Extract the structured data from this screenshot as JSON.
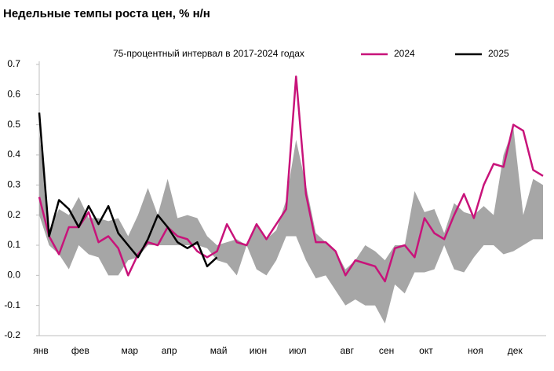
{
  "chart_data": {
    "type": "line",
    "title": "Недельные темпы роста цен, % н/н",
    "categories": [
      "янв",
      null,
      null,
      null,
      "фев",
      null,
      null,
      null,
      null,
      "мар",
      null,
      null,
      null,
      "апр",
      null,
      null,
      null,
      null,
      "май",
      null,
      null,
      null,
      "июн",
      null,
      null,
      null,
      "июл",
      null,
      null,
      null,
      null,
      "авг",
      null,
      null,
      null,
      "сен",
      null,
      null,
      null,
      "окт",
      null,
      null,
      null,
      null,
      "ноя",
      null,
      null,
      null,
      "дек",
      null,
      null,
      null
    ],
    "series": [
      {
        "name": "75-процентный интервал в 2017-2024 годах",
        "color": "#a6a6a6",
        "upper": [
          0.48,
          0.15,
          0.22,
          0.2,
          0.26,
          0.19,
          0.19,
          0.18,
          0.19,
          0.13,
          0.2,
          0.29,
          0.2,
          0.32,
          0.19,
          0.2,
          0.19,
          0.13,
          0.1,
          0.11,
          0.12,
          0.1,
          0.17,
          0.12,
          0.15,
          0.25,
          0.45,
          0.3,
          0.14,
          0.11,
          0.08,
          0.02,
          0.05,
          0.1,
          0.08,
          0.05,
          0.1,
          0.1,
          0.28,
          0.21,
          0.22,
          0.14,
          0.24,
          0.21,
          0.2,
          0.23,
          0.2,
          0.4,
          0.49,
          0.2,
          0.32,
          0.3
        ],
        "lower": [
          0.2,
          0.1,
          0.07,
          0.02,
          0.1,
          0.07,
          0.06,
          0.0,
          0.0,
          0.05,
          0.06,
          0.1,
          0.1,
          0.1,
          0.1,
          0.1,
          0.1,
          0.09,
          0.05,
          0.04,
          0.0,
          0.1,
          0.02,
          0.0,
          0.05,
          0.13,
          0.13,
          0.05,
          -0.01,
          0.0,
          -0.05,
          -0.1,
          -0.08,
          -0.1,
          -0.1,
          -0.16,
          -0.03,
          -0.06,
          0.01,
          0.01,
          0.02,
          0.1,
          0.02,
          0.01,
          0.06,
          0.1,
          0.1,
          0.07,
          0.08,
          0.1,
          0.12,
          0.12
        ]
      },
      {
        "name": "2024",
        "color": "#c8137a",
        "values": [
          0.26,
          0.13,
          0.07,
          0.16,
          0.16,
          0.21,
          0.11,
          0.13,
          0.09,
          0.0,
          0.07,
          0.11,
          0.1,
          0.16,
          0.13,
          0.12,
          0.08,
          0.06,
          0.08,
          0.17,
          0.11,
          0.1,
          0.17,
          0.12,
          0.17,
          0.22,
          0.66,
          0.27,
          0.11,
          0.11,
          0.08,
          0.0,
          0.05,
          0.04,
          0.03,
          -0.02,
          0.09,
          0.1,
          0.06,
          0.19,
          0.14,
          0.12,
          0.2,
          0.27,
          0.19,
          0.3,
          0.37,
          0.36,
          0.5,
          0.48,
          0.35,
          0.33
        ]
      },
      {
        "name": "2025",
        "color": "#000000",
        "values": [
          0.54,
          0.13,
          0.25,
          0.22,
          0.16,
          0.23,
          0.17,
          0.23,
          0.14,
          0.1,
          0.06,
          0.12,
          0.2,
          0.16,
          0.11,
          0.09,
          0.11,
          0.03,
          0.06,
          null,
          null,
          null,
          null,
          null,
          null,
          null,
          null,
          null,
          null,
          null,
          null,
          null,
          null,
          null,
          null,
          null,
          null,
          null,
          null,
          null,
          null,
          null,
          null,
          null,
          null,
          null,
          null,
          null,
          null,
          null,
          null,
          null
        ]
      }
    ],
    "ylim": [
      -0.2,
      0.7
    ],
    "yticks": [
      -0.2,
      -0.1,
      {
        "value": 0,
        "label": "0.0"
      },
      0.1,
      0.2,
      0.3,
      0.4,
      0.5,
      0.6,
      0.7
    ],
    "grid": false
  }
}
